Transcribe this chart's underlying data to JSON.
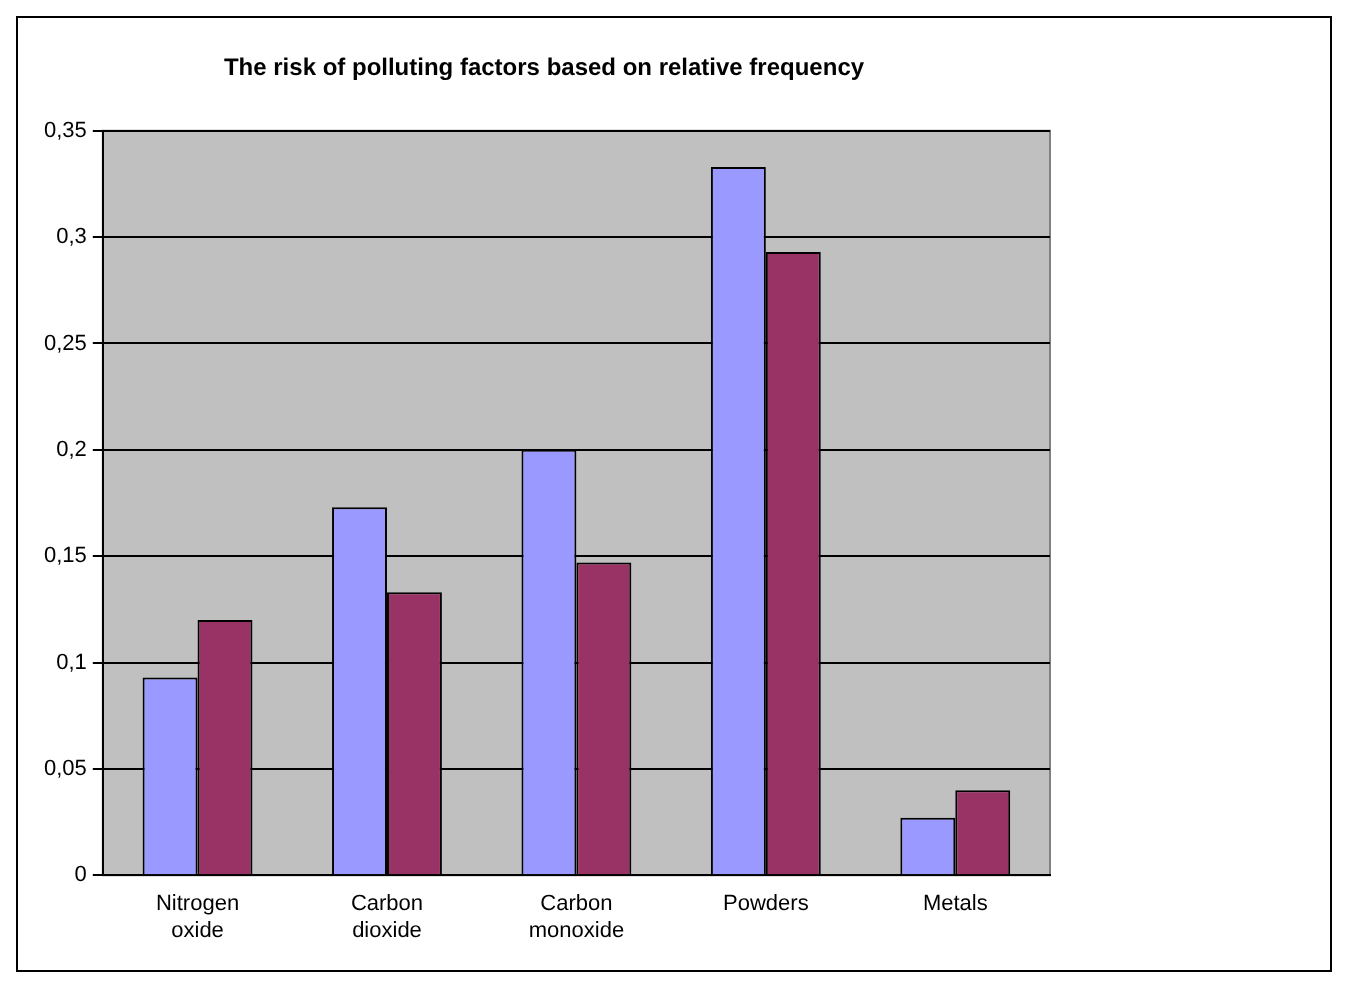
{
  "chart_data": {
    "type": "bar",
    "title": "The risk of polluting factors based on relative frequency",
    "categories": [
      "Nitrogen oxide",
      "Carbon dioxide",
      "Carbon monoxide",
      "Powders",
      "Metals"
    ],
    "series": [
      {
        "color": "#9999ff",
        "values": [
          0.093,
          0.173,
          0.2,
          0.333,
          0.027
        ]
      },
      {
        "color": "#993366",
        "values": [
          0.12,
          0.133,
          0.147,
          0.293,
          0.04
        ]
      }
    ],
    "ylim": [
      0,
      0.35
    ],
    "yticks": [
      {
        "value": 0,
        "label": "0"
      },
      {
        "value": 0.05,
        "label": "0,05"
      },
      {
        "value": 0.1,
        "label": "0,1"
      },
      {
        "value": 0.15,
        "label": "0,15"
      },
      {
        "value": 0.2,
        "label": "0,2"
      },
      {
        "value": 0.25,
        "label": "0,25"
      },
      {
        "value": 0.3,
        "label": "0,3"
      },
      {
        "value": 0.35,
        "label": "0,35"
      }
    ],
    "grid": "y"
  }
}
